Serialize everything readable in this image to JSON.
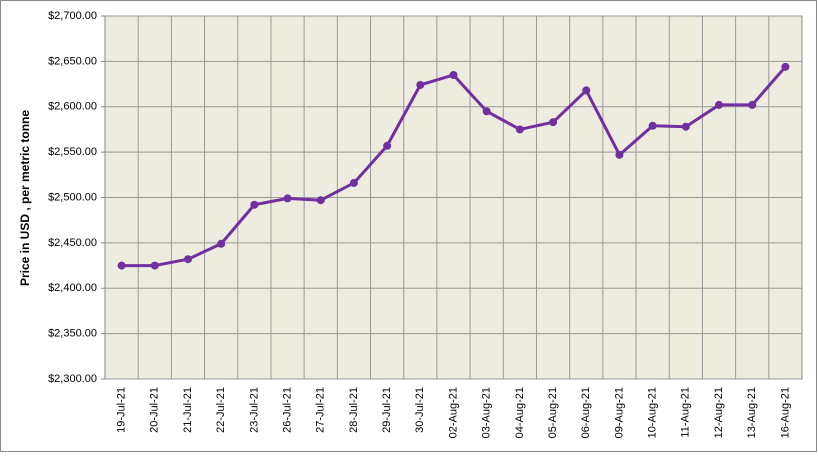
{
  "chart_data": {
    "type": "line",
    "y_label": "Price in USD , per metric tonne",
    "categories": [
      "19-Jul-21",
      "20-Jul-21",
      "21-Jul-21",
      "22-Jul-21",
      "23-Jul-21",
      "26-Jul-21",
      "27-Jul-21",
      "28-Jul-21",
      "29-Jul-21",
      "30-Jul-21",
      "02-Aug-21",
      "03-Aug-21",
      "04-Aug-21",
      "05-Aug-21",
      "06-Aug-21",
      "09-Aug-21",
      "10-Aug-21",
      "11-Aug-21",
      "12-Aug-21",
      "13-Aug-21",
      "16-Aug-21"
    ],
    "series": [
      {
        "name": "Price",
        "color": "#7030a0",
        "values": [
          2425,
          2425,
          2432,
          2449,
          2492,
          2499,
          2497,
          2516,
          2557,
          2624,
          2635,
          2595,
          2575,
          2583,
          2618,
          2547,
          2579,
          2578,
          2602,
          2602,
          2644
        ]
      }
    ],
    "ylim": [
      2300,
      2700
    ],
    "yticks": [
      {
        "value": 2300,
        "label": "$2,300.00"
      },
      {
        "value": 2350,
        "label": "$2,350.00"
      },
      {
        "value": 2400,
        "label": "$2,400.00"
      },
      {
        "value": 2450,
        "label": "$2,450.00"
      },
      {
        "value": 2500,
        "label": "$2,500.00"
      },
      {
        "value": 2550,
        "label": "$2,550.00"
      },
      {
        "value": 2600,
        "label": "$2,600.00"
      },
      {
        "value": 2650,
        "label": "$2,650.00"
      },
      {
        "value": 2700,
        "label": "$2,700.00"
      }
    ],
    "grid": true
  }
}
